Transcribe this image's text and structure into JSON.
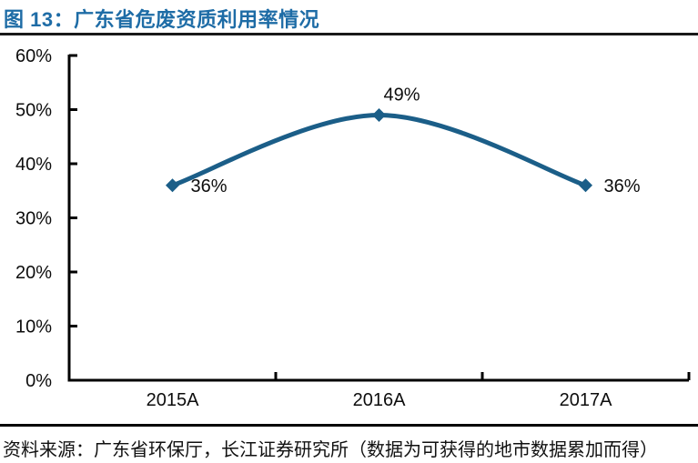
{
  "page": {
    "title": "图 13：广东省危废资质利用率情况",
    "source": "资料来源：广东省环保厅，长江证券研究所（数据为可获得的地市数据累加而得）"
  },
  "colors": {
    "title_blue": "#1e6ca6",
    "line_blue": "#1b5e88",
    "axis_black": "#000000",
    "label_black": "#0d0d0d"
  },
  "chart_data": {
    "type": "line",
    "smooth": true,
    "title": "图 13：广东省危废资质利用率情况",
    "categories": [
      "2015A",
      "2016A",
      "2017A"
    ],
    "values": [
      36,
      49,
      36
    ],
    "data_labels": [
      "36%",
      "49%",
      "36%"
    ],
    "data_label_positions": [
      "right",
      "above-right",
      "right"
    ],
    "xlabel": "",
    "ylabel": "",
    "ylim": [
      0,
      60
    ],
    "ytick_step": 10,
    "ytick_labels": [
      "0%",
      "10%",
      "20%",
      "30%",
      "40%",
      "50%",
      "60%"
    ],
    "grid": false,
    "legend": "none",
    "marker": "diamond"
  }
}
